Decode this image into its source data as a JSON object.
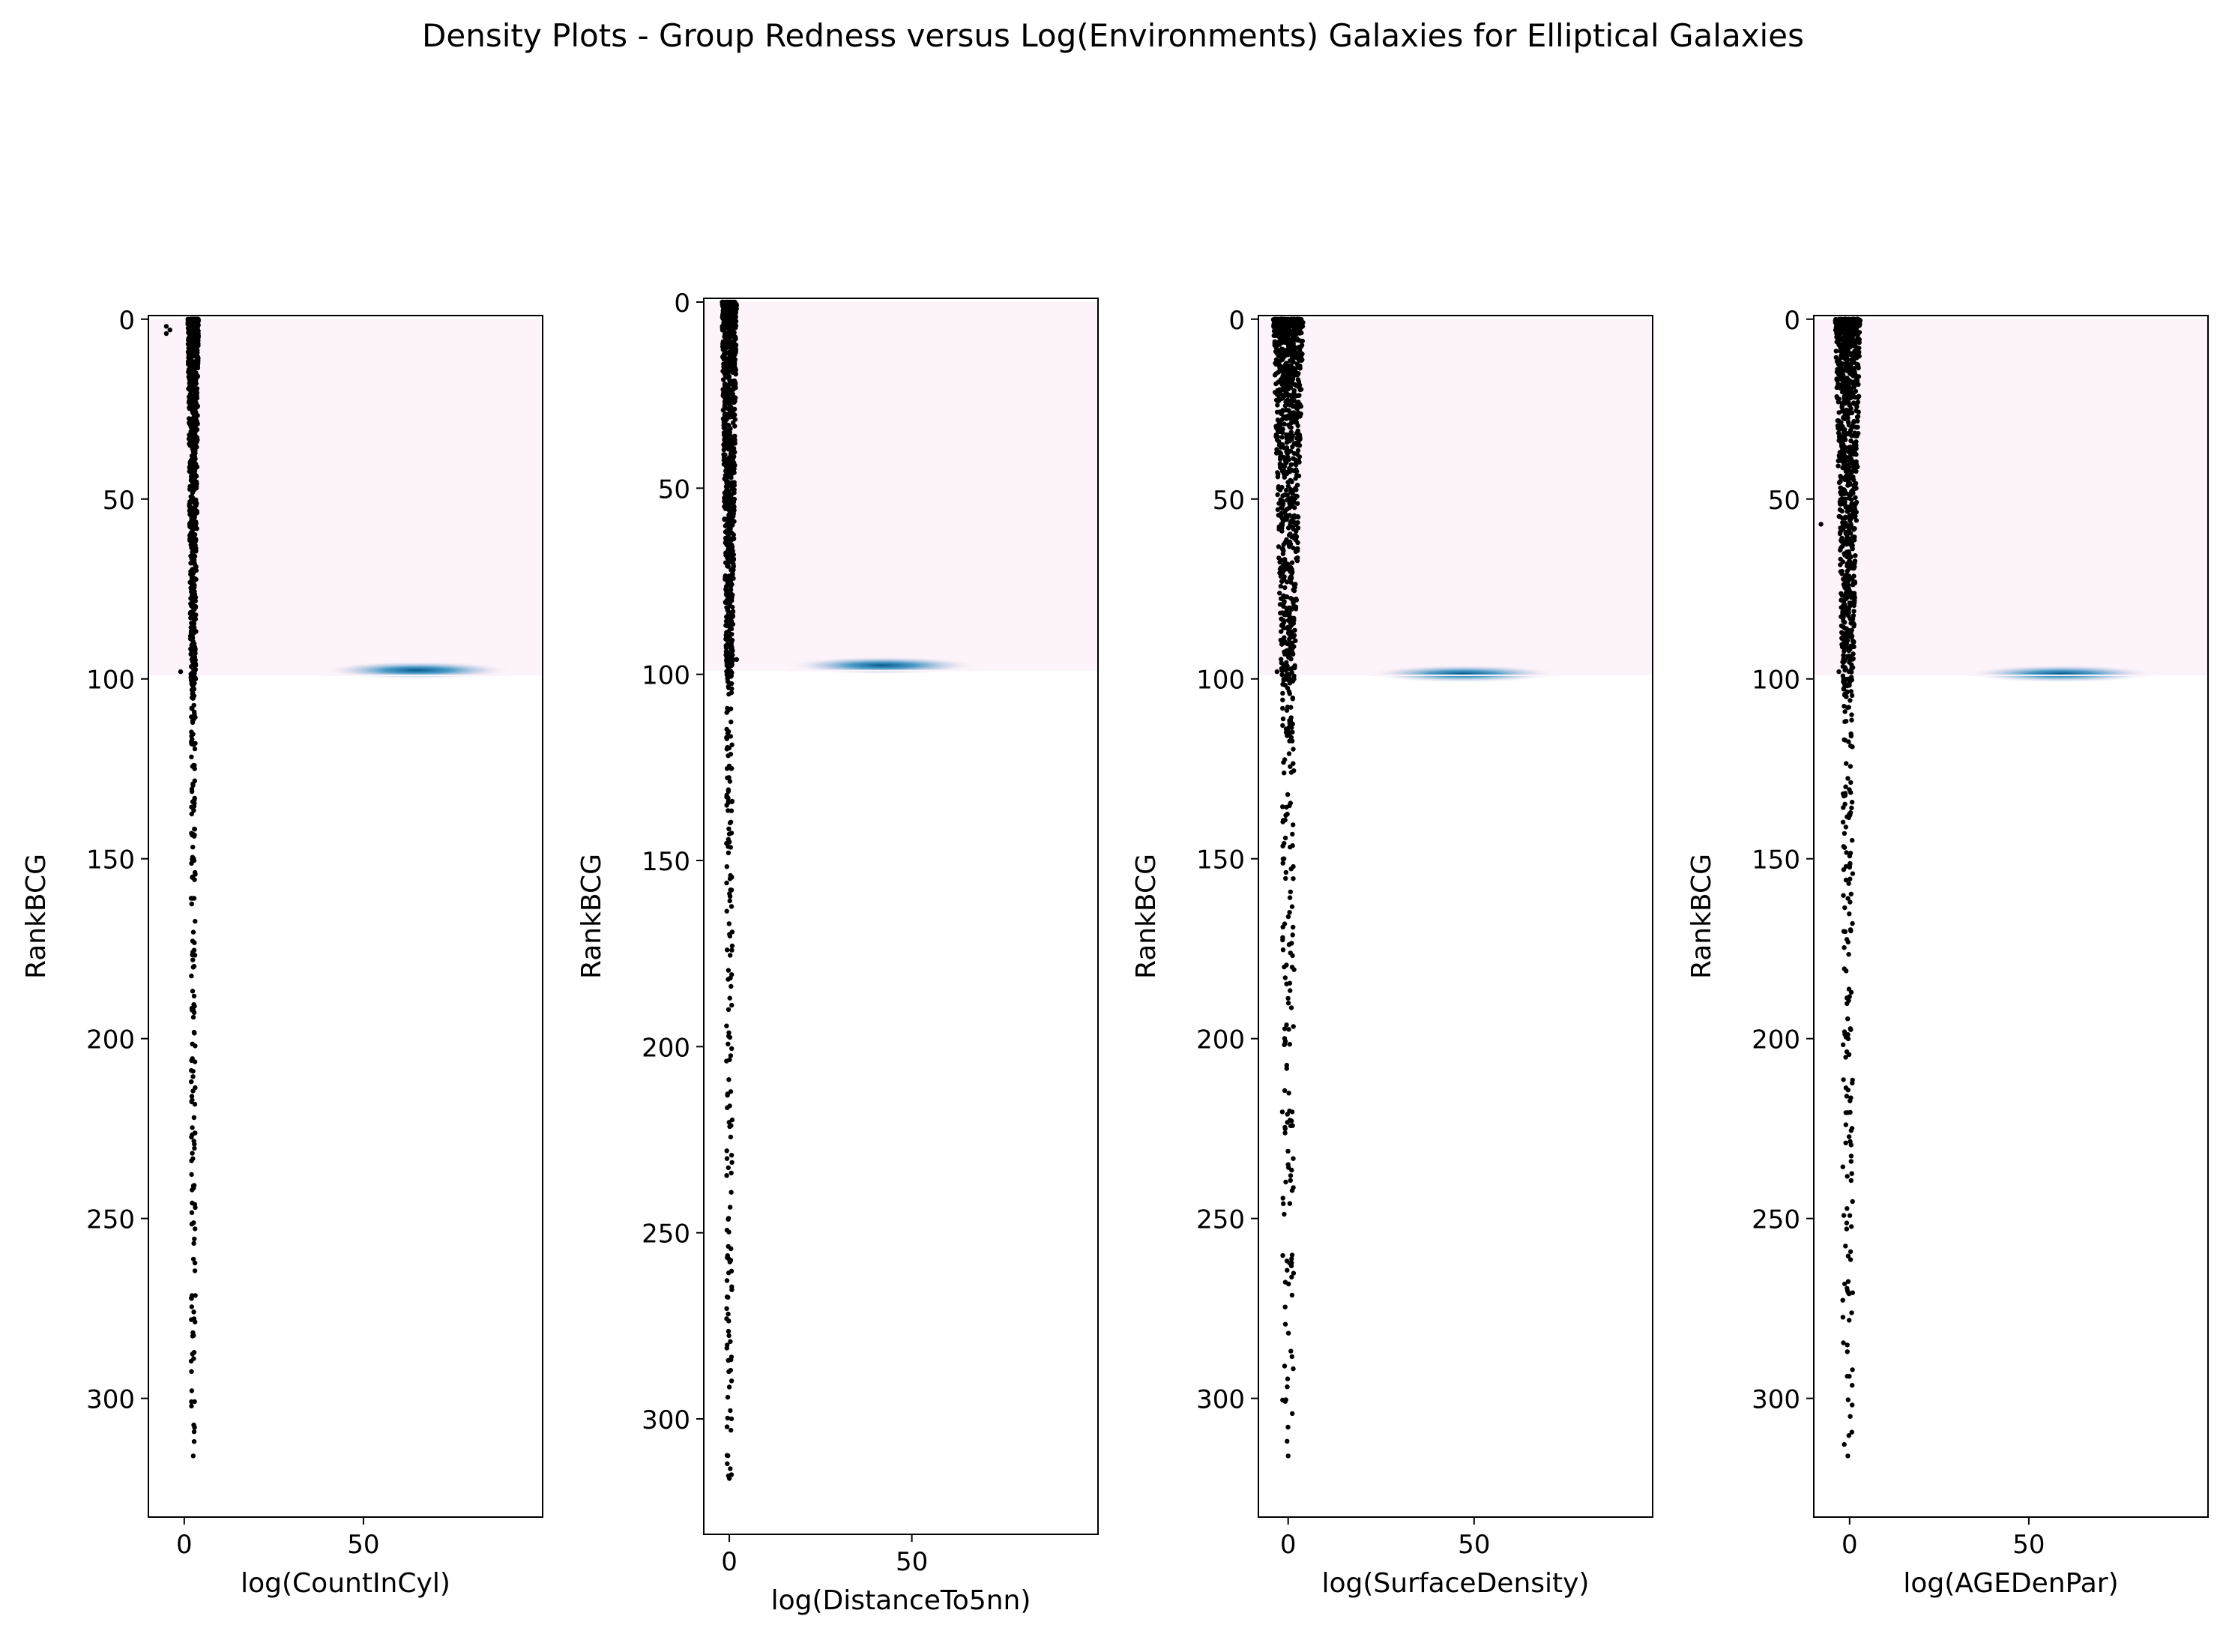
{
  "figure": {
    "title": "Density Plots - Group Redness versus Log(Environments) Galaxies  for Elliptical Galaxies",
    "colors": {
      "background": "#ffffff",
      "points": "#000000",
      "density_low": "#fdf3fa",
      "density_high": "#045a8d"
    }
  },
  "chart_data": [
    {
      "type": "scatter",
      "overlay": "heatmap",
      "title": "",
      "xlabel": "log(CountInCyl)",
      "ylabel": "RankBCG",
      "xlim": [
        -10,
        100
      ],
      "ylim": [
        333,
        -1
      ],
      "y_inverted": true,
      "xticks": [
        0,
        50
      ],
      "yticks": [
        0,
        50,
        100,
        150,
        200,
        250,
        300
      ],
      "points_x_range": [
        1,
        4
      ],
      "points_y_range": [
        0,
        316
      ],
      "outliers": [
        {
          "x": -5,
          "y": 2
        },
        {
          "x": -5,
          "y": 4
        },
        {
          "x": -4,
          "y": 3
        },
        {
          "x": -1,
          "y": 98
        }
      ],
      "density": {
        "y_range": [
          0,
          99
        ],
        "peak": {
          "x": 65,
          "y": 98
        }
      }
    },
    {
      "type": "scatter",
      "overlay": "heatmap",
      "title": "",
      "xlabel": "log(DistanceTo5nn)",
      "ylabel": "RankBCG",
      "xlim": [
        -7,
        101
      ],
      "ylim": [
        331,
        -1
      ],
      "y_inverted": true,
      "xticks": [
        0,
        50
      ],
      "yticks": [
        0,
        50,
        100,
        150,
        200,
        250,
        300
      ],
      "points_x_range": [
        -2,
        2
      ],
      "points_y_range": [
        0,
        316
      ],
      "outliers": [
        {
          "x": 2,
          "y": 1
        },
        {
          "x": 2,
          "y": 96
        }
      ],
      "density": {
        "y_range": [
          0,
          99
        ],
        "peak": {
          "x": 42,
          "y": 98
        }
      }
    },
    {
      "type": "scatter",
      "overlay": "heatmap",
      "title": "",
      "xlabel": "log(SurfaceDensity)",
      "ylabel": "RankBCG",
      "xlim": [
        -8,
        98
      ],
      "ylim": [
        333,
        -1
      ],
      "y_inverted": true,
      "xticks": [
        0,
        50
      ],
      "yticks": [
        0,
        50,
        100,
        150,
        200,
        250,
        300
      ],
      "points_x_range": [
        -4,
        4
      ],
      "points_y_range": [
        0,
        316
      ],
      "outliers": [
        {
          "x": -3,
          "y": 98
        }
      ],
      "density": {
        "y_range": [
          0,
          99
        ],
        "peak": {
          "x": 47,
          "y": 99
        }
      }
    },
    {
      "type": "scatter",
      "overlay": "heatmap",
      "title": "",
      "xlabel": "log(AGEDenPar)",
      "ylabel": "RankBCG",
      "xlim": [
        -10,
        100
      ],
      "ylim": [
        333,
        -1
      ],
      "y_inverted": true,
      "xticks": [
        0,
        50
      ],
      "yticks": [
        0,
        50,
        100,
        150,
        200,
        250,
        300
      ],
      "points_x_range": [
        -4,
        3
      ],
      "points_y_range": [
        0,
        316
      ],
      "outliers": [
        {
          "x": -8,
          "y": 57
        },
        {
          "x": -3,
          "y": 98
        }
      ],
      "density": {
        "y_range": [
          0,
          99
        ],
        "peak": {
          "x": 59,
          "y": 99
        }
      }
    }
  ]
}
